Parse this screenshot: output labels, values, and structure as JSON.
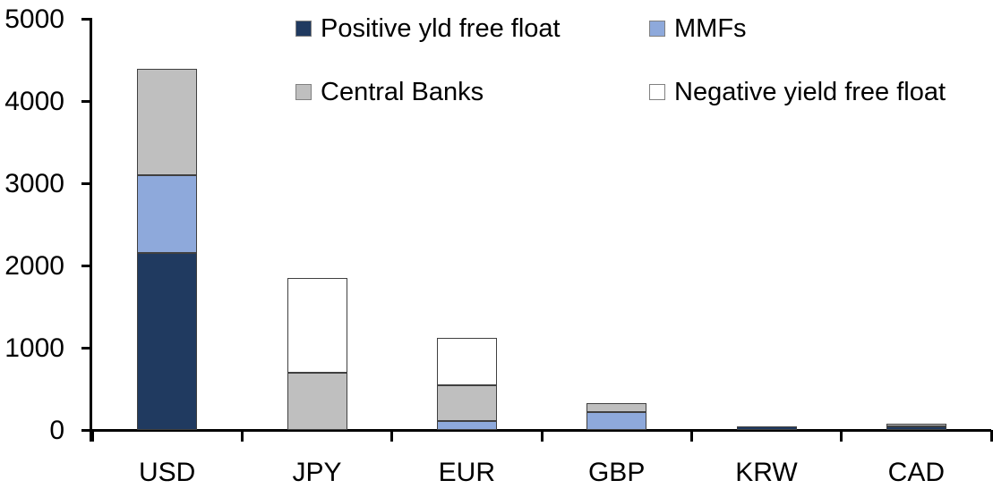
{
  "chart_data": {
    "type": "bar",
    "stacked": true,
    "title": "",
    "xlabel": "",
    "ylabel": "",
    "categories": [
      "USD",
      "JPY",
      "EUR",
      "GBP",
      "KRW",
      "CAD"
    ],
    "series": [
      {
        "name": "Positive yld free float",
        "color": "#203A60",
        "values": [
          2150,
          0,
          0,
          0,
          45,
          45
        ]
      },
      {
        "name": "MMFs",
        "color": "#8EA9DB",
        "values": [
          950,
          0,
          105,
          215,
          0,
          0
        ]
      },
      {
        "name": "Central Banks",
        "color": "#BFBFBF",
        "values": [
          1290,
          700,
          430,
          110,
          0,
          30
        ]
      },
      {
        "name": "Negative yield free float",
        "color": "#FFFFFF",
        "values": [
          0,
          1150,
          575,
          0,
          0,
          0
        ]
      }
    ],
    "ylim": [
      0,
      5000
    ],
    "yticks": [
      0,
      1000,
      2000,
      3000,
      4000,
      5000
    ],
    "grid": false,
    "legend_position": "top",
    "axis_color": "#000000"
  }
}
